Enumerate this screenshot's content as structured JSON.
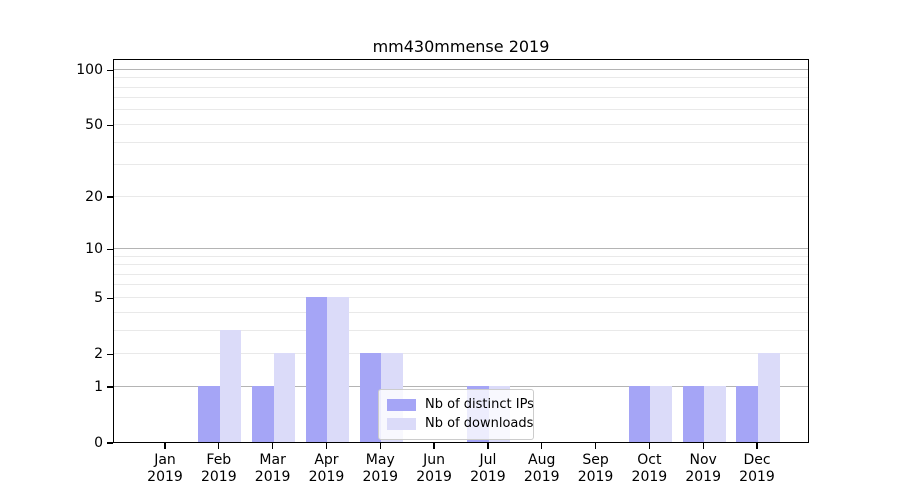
{
  "chart_data": {
    "type": "bar",
    "title": "mm430mmense 2019",
    "x_tick_labels": [
      {
        "month": "Jan",
        "year": "2019"
      },
      {
        "month": "Feb",
        "year": "2019"
      },
      {
        "month": "Mar",
        "year": "2019"
      },
      {
        "month": "Apr",
        "year": "2019"
      },
      {
        "month": "May",
        "year": "2019"
      },
      {
        "month": "Jun",
        "year": "2019"
      },
      {
        "month": "Jul",
        "year": "2019"
      },
      {
        "month": "Aug",
        "year": "2019"
      },
      {
        "month": "Sep",
        "year": "2019"
      },
      {
        "month": "Oct",
        "year": "2019"
      },
      {
        "month": "Nov",
        "year": "2019"
      },
      {
        "month": "Dec",
        "year": "2019"
      }
    ],
    "series": [
      {
        "name": "Nb of distinct IPs",
        "color": "#a5a5f6",
        "values": [
          0,
          1,
          1,
          5,
          2,
          0,
          1,
          0,
          0,
          1,
          1,
          1
        ]
      },
      {
        "name": "Nb of downloads",
        "color": "#dbdbf9",
        "values": [
          0,
          3,
          2,
          5,
          2,
          0,
          1,
          0,
          0,
          1,
          1,
          2
        ]
      }
    ],
    "yscale": "log1p",
    "ylim": [
      0,
      115
    ],
    "yticks": [
      0,
      1,
      2,
      5,
      10,
      20,
      50,
      100
    ],
    "grid_major": [
      1,
      10,
      100
    ],
    "grid_minor": [
      2,
      3,
      4,
      5,
      6,
      7,
      8,
      9,
      20,
      30,
      40,
      50,
      60,
      70,
      80,
      90
    ],
    "legend_position": "lower-center-inside",
    "colors": {
      "axis": "#000000",
      "grid_major": "#b4b4b4",
      "grid_minor": "#e9e9e9",
      "legend_border": "#cccccc",
      "legend_bg": "rgba(255,255,255,0.8)"
    }
  }
}
